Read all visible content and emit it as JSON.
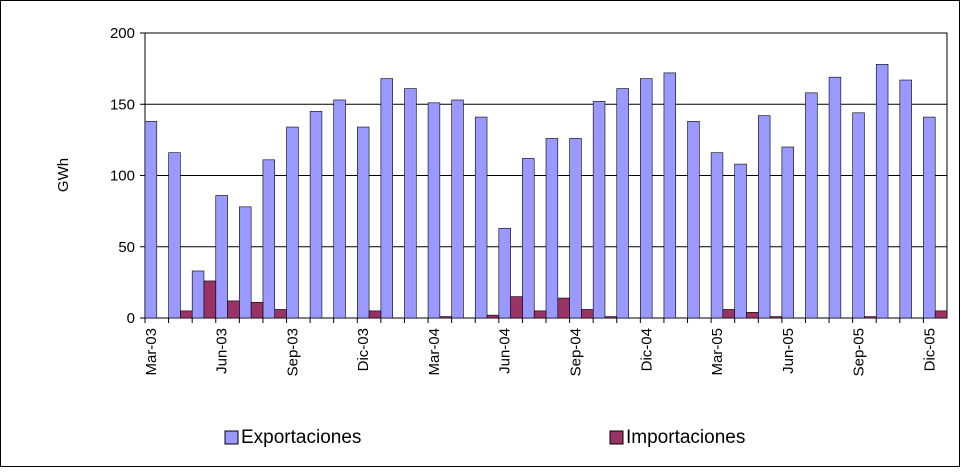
{
  "chart_data": {
    "type": "bar",
    "y_label": "GWh",
    "categories": [
      "Mar-03",
      null,
      null,
      "Jun-03",
      null,
      null,
      "Sep-03",
      null,
      null,
      "Dic-03",
      null,
      null,
      "Mar-04",
      null,
      null,
      "Jun-04",
      null,
      null,
      "Sep-04",
      null,
      null,
      "Dic-04",
      null,
      null,
      "Mar-05",
      null,
      null,
      "Jun-05",
      null,
      null,
      "Sep-05",
      null,
      null,
      "Dic-05"
    ],
    "series": [
      {
        "name": "Exportaciones",
        "color": "#9999ff",
        "values": [
          138,
          116,
          33,
          86,
          78,
          111,
          134,
          145,
          153,
          134,
          168,
          161,
          151,
          153,
          141,
          63,
          112,
          126,
          126,
          152,
          161,
          168,
          172,
          138,
          116,
          108,
          142,
          120,
          158,
          169,
          144,
          178,
          167,
          141
        ]
      },
      {
        "name": "Importaciones",
        "color": "#993366",
        "values": [
          0,
          5,
          26,
          12,
          11,
          6,
          0,
          0,
          0,
          5,
          0,
          0,
          1,
          0,
          2,
          15,
          5,
          14,
          6,
          1,
          0,
          0,
          0,
          0,
          6,
          4,
          1,
          0,
          0,
          0,
          1,
          0,
          0,
          5
        ]
      }
    ],
    "ylim": [
      0,
      200
    ],
    "yticks": [
      0,
      50,
      100,
      150,
      200
    ],
    "grid": true,
    "legend": "bottom"
  }
}
